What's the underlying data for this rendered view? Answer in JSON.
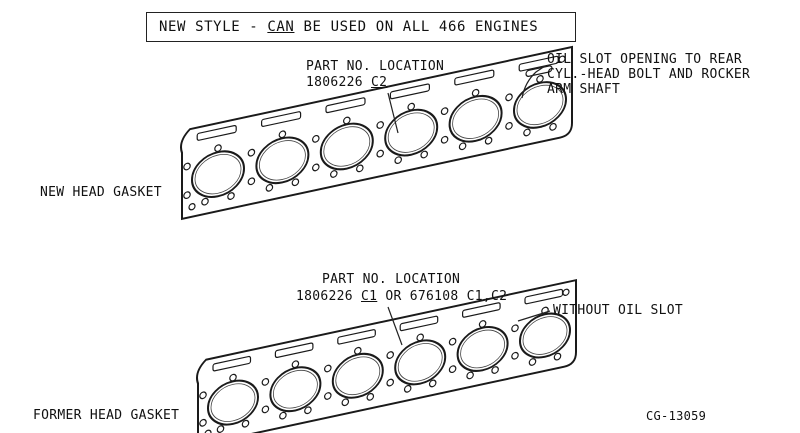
{
  "banner": {
    "prefix": "NEW STYLE - ",
    "emphasis": "CAN",
    "suffix": " BE USED ON ALL 466 ENGINES"
  },
  "new_gasket": {
    "label": "NEW HEAD GASKET",
    "part_heading": "PART NO. LOCATION",
    "part_number": "1806226 ",
    "part_suffix": "C2",
    "callout_line1": "OIL SLOT OPENING TO REAR",
    "callout_line2": "CYL.-HEAD BOLT AND ROCKER",
    "callout_line3": "ARM SHAFT"
  },
  "former_gasket": {
    "label": "FORMER HEAD GASKET",
    "part_heading": "PART NO. LOCATION",
    "part_number": "1806226 ",
    "part_suffix": "C1",
    "part_alt": " OR 676108 C1,C2",
    "callout": "WITHOUT OIL SLOT"
  },
  "figure_id": "CG-13059",
  "icons": {
    "gasket": "head-gasket-drawing",
    "leader": "leader-line"
  }
}
